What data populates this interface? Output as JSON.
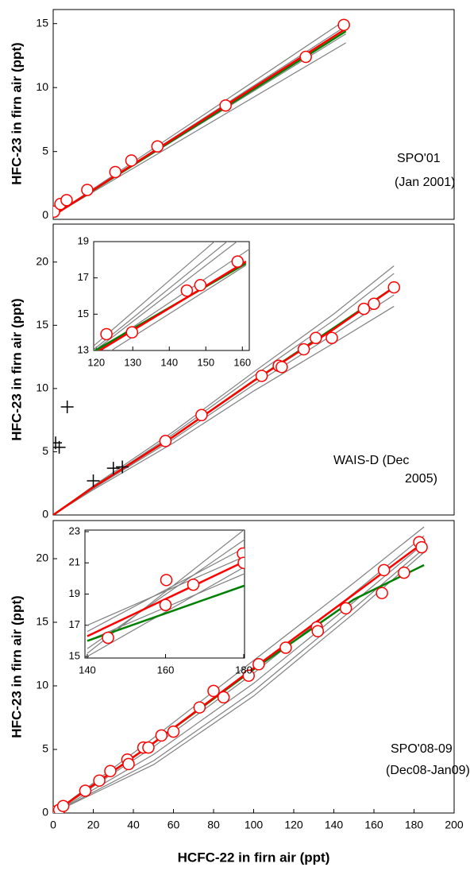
{
  "chart_data": [
    {
      "type": "line",
      "ylabel": "HFC-23 in firn air (ppt)",
      "xlim": [
        0,
        200
      ],
      "ylim": [
        -0.3,
        16.1
      ],
      "yticks": [
        0,
        5,
        10,
        15
      ],
      "annotations": [
        "SPO'01",
        "(Jan 2001)"
      ],
      "series": [
        {
          "type": "line",
          "color": "#808080",
          "x": [
            0,
            146
          ],
          "values": [
            0,
            15.3
          ]
        },
        {
          "type": "line",
          "color": "#808080",
          "x": [
            0,
            146
          ],
          "values": [
            0,
            14.8
          ]
        },
        {
          "type": "line",
          "color": "#808080",
          "x": [
            0,
            146
          ],
          "values": [
            0,
            14.2
          ]
        },
        {
          "type": "line",
          "color": "#808080",
          "x": [
            0,
            146
          ],
          "values": [
            0,
            13.5
          ]
        },
        {
          "type": "line",
          "color": "#008000",
          "x": [
            0,
            146
          ],
          "values": [
            0,
            14.4
          ]
        },
        {
          "type": "line",
          "color": "#ff0000",
          "x": [
            0,
            146
          ],
          "values": [
            0,
            14.6
          ]
        },
        {
          "type": "scatter",
          "marker": "circle",
          "color": "#ff0000",
          "x": [
            0.4,
            3.6,
            6.7,
            17,
            31,
            39,
            52,
            86,
            126,
            145
          ],
          "values": [
            0.3,
            0.9,
            1.2,
            2.0,
            3.4,
            4.3,
            5.4,
            8.6,
            12.4,
            14.9
          ]
        }
      ]
    },
    {
      "type": "line",
      "ylabel": "HFC-23 in firn air (ppt)",
      "xlim": [
        0,
        200
      ],
      "ylim": [
        0,
        23
      ],
      "yticks": [
        0,
        5,
        10,
        15,
        20
      ],
      "annotations": [
        "WAIS-D (Dec",
        "2005)"
      ],
      "series": [
        {
          "type": "line",
          "color": "#808080",
          "x": [
            0,
            20,
            60,
            100,
            140,
            170
          ],
          "values": [
            0,
            2.3,
            6.6,
            11.3,
            15.9,
            19.7
          ]
        },
        {
          "type": "line",
          "color": "#808080",
          "x": [
            0,
            20,
            60,
            100,
            140,
            170
          ],
          "values": [
            0,
            2.2,
            6.4,
            11.0,
            15.4,
            19.1
          ]
        },
        {
          "type": "line",
          "color": "#808080",
          "x": [
            0,
            20,
            60,
            100,
            140,
            170
          ],
          "values": [
            0,
            2.1,
            6.0,
            10.3,
            14.3,
            17.4
          ]
        },
        {
          "type": "line",
          "color": "#808080",
          "x": [
            0,
            20,
            60,
            100,
            140,
            170
          ],
          "values": [
            0,
            2.0,
            5.7,
            9.8,
            13.6,
            16.5
          ]
        },
        {
          "type": "line",
          "color": "#008000",
          "x": [
            0,
            20,
            60,
            100,
            140,
            170
          ],
          "values": [
            0,
            2.2,
            6.2,
            10.6,
            14.8,
            18.0
          ]
        },
        {
          "type": "line",
          "color": "#ff0000",
          "x": [
            0,
            20,
            60,
            100,
            140,
            170
          ],
          "values": [
            0,
            2.2,
            6.2,
            10.6,
            14.7,
            18.0
          ]
        },
        {
          "type": "scatter",
          "marker": "plus",
          "color": "#000000",
          "x": [
            7,
            1.2,
            3,
            20,
            30,
            34.5
          ],
          "values": [
            8.55,
            5.7,
            5.35,
            2.7,
            3.7,
            3.8
          ]
        },
        {
          "type": "scatter",
          "marker": "circle",
          "color": "#ff0000",
          "x": [
            56,
            74,
            104,
            112.5,
            114,
            125,
            131,
            139,
            155,
            160,
            170
          ],
          "values": [
            5.85,
            7.9,
            11.0,
            11.8,
            11.7,
            13.1,
            14.0,
            14.0,
            16.3,
            16.7,
            18.0
          ]
        }
      ]
    },
    {
      "type": "line",
      "ylabel": "HFC-23 in firn air (ppt)",
      "xlabel": "HCFC-22 in firn air (ppt)",
      "xlim": [
        0,
        200
      ],
      "ylim": [
        0,
        23
      ],
      "xticks": [
        0,
        20,
        40,
        60,
        80,
        100,
        120,
        140,
        160,
        180,
        200
      ],
      "yticks": [
        0,
        5,
        10,
        15,
        20
      ],
      "annotations": [
        "SPO'08-09",
        "(Dec08-Jan09)"
      ],
      "series": [
        {
          "type": "line",
          "color": "#808080",
          "x": [
            0,
            50,
            100,
            150,
            185
          ],
          "values": [
            0,
            5.9,
            12.0,
            18.1,
            22.5
          ]
        },
        {
          "type": "line",
          "color": "#808080",
          "x": [
            0,
            50,
            100,
            150,
            185
          ],
          "values": [
            0,
            5.2,
            11.0,
            17.3,
            21.8
          ]
        },
        {
          "type": "line",
          "color": "#808080",
          "x": [
            0,
            50,
            100,
            150,
            185
          ],
          "values": [
            0,
            4.6,
            10.2,
            16.6,
            21.2
          ]
        },
        {
          "type": "line",
          "color": "#808080",
          "x": [
            0,
            50,
            100,
            150,
            185
          ],
          "values": [
            0,
            4.1,
            9.6,
            16.1,
            20.8
          ]
        },
        {
          "type": "line",
          "color": "#808080",
          "x": [
            0,
            50,
            100,
            150,
            185
          ],
          "values": [
            0,
            3.8,
            9.2,
            15.7,
            20.5
          ]
        },
        {
          "type": "line",
          "color": "#008000",
          "x": [
            0,
            50,
            100,
            150,
            185
          ],
          "values": [
            0,
            5.5,
            11.3,
            16.8,
            19.5
          ]
        },
        {
          "type": "line",
          "color": "#ff0000",
          "x": [
            0,
            50,
            100,
            150,
            185
          ],
          "values": [
            0,
            5.5,
            11.4,
            17.2,
            21.3
          ]
        },
        {
          "type": "scatter",
          "marker": "circle",
          "color": "#ff0000",
          "x": [
            0.4,
            3,
            5,
            16,
            23,
            28.5,
            37,
            37.6,
            45,
            47.5,
            54,
            60,
            73,
            80,
            85,
            97.5,
            102.5,
            116,
            131.5,
            132,
            146,
            164,
            165,
            175,
            182.6,
            183.8
          ],
          "values": [
            0.1,
            0.25,
            0.55,
            1.75,
            2.55,
            3.3,
            4.2,
            3.85,
            5.15,
            5.15,
            6.1,
            6.4,
            8.3,
            9.6,
            9.1,
            10.8,
            11.7,
            13.0,
            14.6,
            14.3,
            16.1,
            17.3,
            19.1,
            18.9,
            21.3,
            20.9
          ]
        }
      ]
    },
    {
      "type": "line",
      "xlim": [
        119.3,
        161.9
      ],
      "ylim": [
        13,
        19
      ],
      "xticks": [
        120,
        130,
        140,
        150,
        160
      ],
      "yticks": [
        13,
        15,
        17,
        19
      ],
      "series": [
        {
          "type": "line",
          "color": "#808080",
          "x": [
            119,
            165
          ],
          "values": [
            13.2,
            21.2
          ]
        },
        {
          "type": "line",
          "color": "#808080",
          "x": [
            119,
            165
          ],
          "values": [
            13.0,
            20.5
          ]
        },
        {
          "type": "line",
          "color": "#808080",
          "x": [
            119,
            165
          ],
          "values": [
            12.9,
            20.0
          ]
        },
        {
          "type": "line",
          "color": "#808080",
          "x": [
            119,
            165
          ],
          "values": [
            12.8,
            19.0
          ]
        },
        {
          "type": "line",
          "color": "#808080",
          "x": [
            121,
            161
          ],
          "values": [
            12.6,
            17.7
          ]
        },
        {
          "type": "line",
          "color": "#008000",
          "x": [
            119.3,
            161
          ],
          "values": [
            12.95,
            17.8
          ]
        },
        {
          "type": "line",
          "color": "#ff0000",
          "x": [
            119.3,
            161
          ],
          "values": [
            12.8,
            17.9
          ]
        },
        {
          "type": "scatter",
          "marker": "circle",
          "color": "#ff0000",
          "x": [
            122.8,
            129.8,
            144.8,
            148.5,
            158.7
          ],
          "values": [
            13.9,
            14.0,
            16.3,
            16.6,
            17.9
          ]
        }
      ]
    },
    {
      "type": "line",
      "xlim": [
        139.4,
        180.2
      ],
      "ylim": [
        14.9,
        23.1
      ],
      "xticks": [
        140,
        160,
        180
      ],
      "yticks": [
        15,
        17,
        19,
        21,
        23
      ],
      "series": [
        {
          "type": "line",
          "color": "#808080",
          "x": [
            140,
            182
          ],
          "values": [
            15.2,
            23.5
          ]
        },
        {
          "type": "line",
          "color": "#808080",
          "x": [
            140,
            182
          ],
          "values": [
            15.5,
            22.8
          ]
        },
        {
          "type": "line",
          "color": "#808080",
          "x": [
            140,
            182
          ],
          "values": [
            16.6,
            22.2
          ]
        },
        {
          "type": "line",
          "color": "#808080",
          "x": [
            140,
            182
          ],
          "values": [
            17.0,
            21.6
          ]
        },
        {
          "type": "line",
          "color": "#808080",
          "x": [
            140,
            182
          ],
          "values": [
            15.0,
            21.0
          ]
        },
        {
          "type": "line",
          "color": "#808080",
          "x": [
            140,
            182
          ],
          "values": [
            16.0,
            20.5
          ]
        },
        {
          "type": "line",
          "color": "#008000",
          "x": [
            140,
            182
          ],
          "values": [
            16.0,
            19.7
          ]
        },
        {
          "type": "line",
          "color": "#ff0000",
          "x": [
            140,
            182
          ],
          "values": [
            16.3,
            21.3
          ]
        },
        {
          "type": "scatter",
          "marker": "circle",
          "color": "#ff0000",
          "x": [
            145.3,
            160.2,
            160,
            167.1,
            179.8,
            180
          ],
          "values": [
            16.2,
            19.9,
            18.3,
            19.6,
            21.6,
            21.0
          ]
        }
      ]
    }
  ]
}
